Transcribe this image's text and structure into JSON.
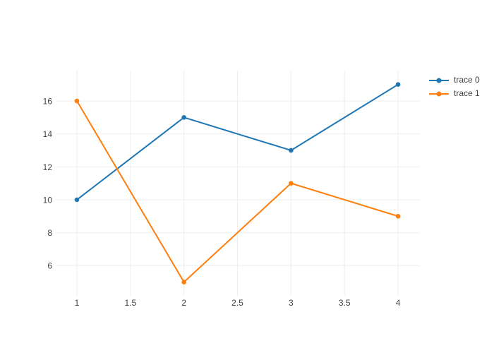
{
  "chart": {
    "background": "#ffffff",
    "grid_color": "#eeeeee",
    "tick_color": "#444444"
  },
  "chart_data": {
    "type": "line",
    "x": [
      1,
      2,
      3,
      4
    ],
    "series": [
      {
        "name": "trace 0",
        "color": "#1f77b4",
        "values": [
          10,
          15,
          13,
          17
        ]
      },
      {
        "name": "trace 1",
        "color": "#ff7f0e",
        "values": [
          16,
          5,
          11,
          9
        ]
      }
    ],
    "title": "",
    "xlabel": "",
    "ylabel": "",
    "x_ticks": [
      1,
      1.5,
      2,
      2.5,
      3,
      3.5,
      4
    ],
    "y_ticks": [
      6,
      8,
      10,
      12,
      14,
      16
    ],
    "xlim": [
      0.809,
      4.204
    ],
    "ylim": [
      4.165,
      17.845
    ],
    "grid": true,
    "legend_position": "top-right",
    "marker": "circle",
    "line_width": 2,
    "marker_radius": 3.3
  }
}
